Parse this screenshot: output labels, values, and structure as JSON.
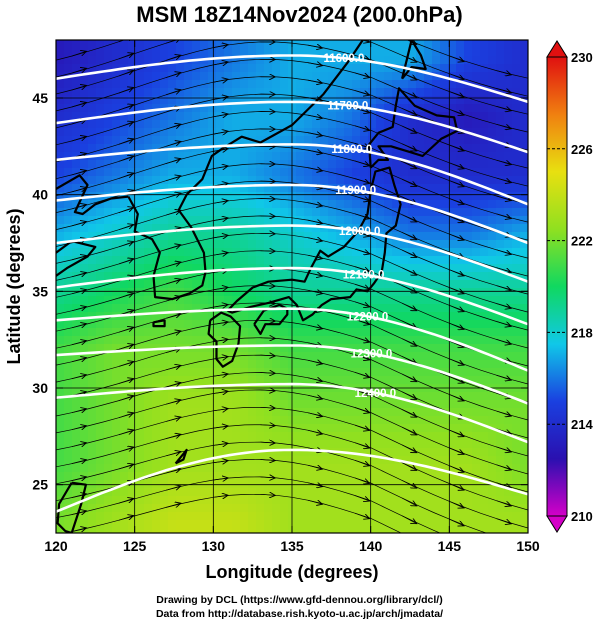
{
  "title": "MSM 18Z14Nov2024 (200.0hPa)",
  "credits": [
    "Drawing by DCL (https://www.gfd-dennou.org/library/dcl/)",
    "Data from http://database.rish.kyoto-u.ac.jp/arch/jmadata/"
  ],
  "chart_data": {
    "type": "heatmap",
    "title": "MSM 18Z14Nov2024 (200.0hPa)",
    "xlabel": "Longitude (degrees)",
    "ylabel": "Latitude  (degrees)",
    "xlim": [
      120,
      150
    ],
    "ylim": [
      22.5,
      48
    ],
    "x_ticks": [
      {
        "value": 120,
        "label": "120"
      },
      {
        "value": 125,
        "label": "125"
      },
      {
        "value": 130,
        "label": "130"
      },
      {
        "value": 135,
        "label": "135"
      },
      {
        "value": 140,
        "label": "140"
      },
      {
        "value": 145,
        "label": "145"
      },
      {
        "value": 150,
        "label": "150"
      }
    ],
    "y_ticks": [
      {
        "value": 25,
        "label": "25"
      },
      {
        "value": 30,
        "label": "30"
      },
      {
        "value": 35,
        "label": "35"
      },
      {
        "value": 40,
        "label": "40"
      },
      {
        "value": 45,
        "label": "45"
      }
    ],
    "grid": true,
    "colorbar": {
      "min": 210,
      "max": 230,
      "ticks": [
        {
          "value": 210,
          "label": "210"
        },
        {
          "value": 214,
          "label": "214"
        },
        {
          "value": 218,
          "label": "218"
        },
        {
          "value": 222,
          "label": "222"
        },
        {
          "value": 226,
          "label": "226"
        },
        {
          "value": 230,
          "label": "230"
        }
      ],
      "colors": [
        "#d400c8",
        "#2a10b0",
        "#1a40e0",
        "#10c8e8",
        "#10d860",
        "#90e020",
        "#e8e010",
        "#f08010",
        "#e01010"
      ]
    },
    "shaded_field": [
      {
        "lat": 47,
        "values": [
          213,
          214,
          215,
          216,
          217,
          217,
          217,
          215,
          214
        ]
      },
      {
        "lat": 44,
        "values": [
          214,
          215,
          216,
          217,
          217,
          216,
          214,
          213,
          214
        ]
      },
      {
        "lat": 41,
        "values": [
          215,
          216,
          217,
          217,
          216,
          215,
          214,
          214,
          214
        ]
      },
      {
        "lat": 38,
        "values": [
          217,
          218,
          219,
          219,
          218,
          217,
          216,
          216,
          217
        ]
      },
      {
        "lat": 35,
        "values": [
          219,
          220,
          221,
          220,
          219,
          219,
          219,
          219,
          219
        ]
      },
      {
        "lat": 32,
        "values": [
          221,
          222,
          222,
          222,
          221,
          221,
          221,
          221,
          221
        ]
      },
      {
        "lat": 29,
        "values": [
          221,
          222,
          223,
          223,
          222,
          222,
          222,
          222,
          222
        ]
      },
      {
        "lat": 26,
        "values": [
          221,
          222,
          223,
          223,
          223,
          223,
          223,
          223,
          222
        ]
      },
      {
        "lat": 23,
        "values": [
          222,
          223,
          224,
          224,
          223,
          223,
          223,
          223,
          223
        ]
      }
    ],
    "contours": [
      {
        "label": "11600.0",
        "lat_at_120": 46.0,
        "lat_at_135": 47.2,
        "lat_at_150": 44.8
      },
      {
        "label": "11700.0",
        "lat_at_120": 43.7,
        "lat_at_135": 44.8,
        "lat_at_150": 42.2
      },
      {
        "label": "11800.0",
        "lat_at_120": 41.8,
        "lat_at_135": 42.6,
        "lat_at_150": 39.5
      },
      {
        "label": "11900.0",
        "lat_at_120": 39.7,
        "lat_at_135": 40.5,
        "lat_at_150": 37.5
      },
      {
        "label": "12000.0",
        "lat_at_120": 37.5,
        "lat_at_135": 38.4,
        "lat_at_150": 35.5
      },
      {
        "label": "12100.0",
        "lat_at_120": 35.2,
        "lat_at_135": 36.2,
        "lat_at_150": 33.3
      },
      {
        "label": "12200.0",
        "lat_at_120": 33.5,
        "lat_at_135": 34.1,
        "lat_at_150": 30.9
      },
      {
        "label": "12300.0",
        "lat_at_120": 31.7,
        "lat_at_135": 32.2,
        "lat_at_150": 29.2
      },
      {
        "label": "12400.0",
        "lat_at_120": 29.5,
        "lat_at_135": 30.2,
        "lat_at_150": 27.2
      },
      {
        "label": "",
        "lat_at_120": 23.6,
        "lat_at_135": 26.8,
        "lat_at_150": 24.5
      }
    ],
    "wind": "streamlines flowing west-to-east, curving anticyclonically"
  }
}
